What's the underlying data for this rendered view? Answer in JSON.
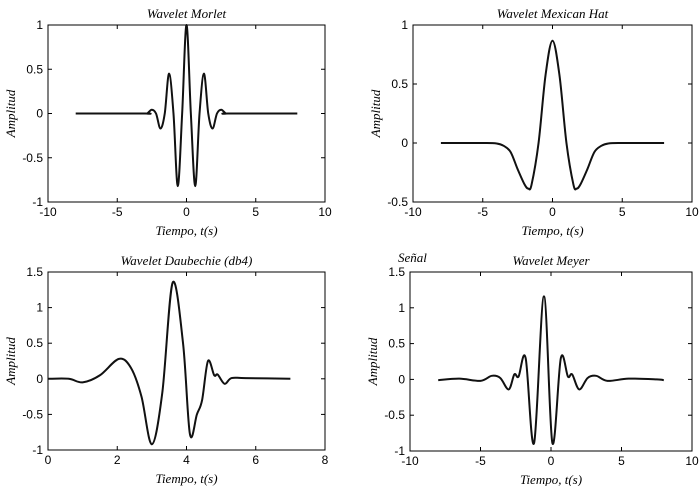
{
  "chart_data": [
    {
      "type": "line",
      "title": "Wavelet Morlet",
      "xlabel": "Tiempo, t(s)",
      "ylabel": "Amplitud",
      "xlim": [
        -10,
        10
      ],
      "ylim": [
        -1,
        1
      ],
      "xticks": [
        -10,
        -5,
        0,
        5,
        10
      ],
      "yticks": [
        -1,
        -0.5,
        0,
        0.5,
        1
      ],
      "xtick_labels": [
        "-10",
        "-5",
        "0",
        "5",
        "10"
      ],
      "ytick_labels": [
        "-1",
        "-0.5",
        "0",
        "0.5",
        "1"
      ],
      "grid": false,
      "points": [
        [
          -8,
          0
        ],
        [
          -3,
          0
        ],
        [
          -2.83,
          0
        ],
        [
          -2.51,
          0.043
        ],
        [
          -2.2,
          0
        ],
        [
          -1.88,
          -0.17
        ],
        [
          -1.57,
          0
        ],
        [
          -1.26,
          0.45
        ],
        [
          -0.94,
          0
        ],
        [
          -0.63,
          -0.82
        ],
        [
          -0.314,
          0
        ],
        [
          0,
          1
        ],
        [
          0.314,
          0
        ],
        [
          0.63,
          -0.82
        ],
        [
          0.94,
          0
        ],
        [
          1.26,
          0.45
        ],
        [
          1.57,
          0
        ],
        [
          1.88,
          -0.17
        ],
        [
          2.2,
          0
        ],
        [
          2.51,
          0.043
        ],
        [
          2.83,
          0
        ],
        [
          3,
          0
        ],
        [
          8,
          0
        ]
      ]
    },
    {
      "type": "line",
      "title": "Wavelet Mexican Hat",
      "xlabel": "Tiempo, t(s)",
      "ylabel": "Amplitud",
      "xlim": [
        -10,
        10
      ],
      "ylim": [
        -0.5,
        1
      ],
      "xticks": [
        -10,
        -5,
        0,
        5,
        10
      ],
      "yticks": [
        -0.5,
        0,
        0.5,
        1
      ],
      "xtick_labels": [
        "-10",
        "-5",
        "0",
        "5",
        "10"
      ],
      "ytick_labels": [
        "-0.5",
        "0",
        "0.5",
        "1"
      ],
      "grid": false,
      "points": [
        [
          -8,
          0
        ],
        [
          -5,
          0
        ],
        [
          -4,
          -0.004
        ],
        [
          -3.5,
          -0.024
        ],
        [
          -3,
          -0.077
        ],
        [
          -2.5,
          -0.222
        ],
        [
          -2,
          -0.352
        ],
        [
          -1.73,
          -0.387
        ],
        [
          -1.5,
          -0.352
        ],
        [
          -1,
          0
        ],
        [
          -0.5,
          0.574
        ],
        [
          0,
          0.867
        ],
        [
          0.5,
          0.574
        ],
        [
          1,
          0
        ],
        [
          1.5,
          -0.352
        ],
        [
          1.73,
          -0.387
        ],
        [
          2,
          -0.352
        ],
        [
          2.5,
          -0.222
        ],
        [
          3,
          -0.077
        ],
        [
          3.5,
          -0.024
        ],
        [
          4,
          -0.004
        ],
        [
          5,
          0
        ],
        [
          8,
          0
        ]
      ]
    },
    {
      "type": "line",
      "title": "Wavelet Daubechie (db4)",
      "xlabel": "Tiempo, t(s)",
      "ylabel": "Amplitud",
      "xlim": [
        0,
        8
      ],
      "ylim": [
        -1,
        1.5
      ],
      "xticks": [
        0,
        2,
        4,
        6,
        8
      ],
      "yticks": [
        -1,
        -0.5,
        0,
        0.5,
        1,
        1.5
      ],
      "xtick_labels": [
        "0",
        "2",
        "4",
        "6",
        "8"
      ],
      "ytick_labels": [
        "-1",
        "-0.5",
        "0",
        "0.5",
        "1",
        "1.5"
      ],
      "grid": false,
      "points": [
        [
          0,
          0
        ],
        [
          0.6,
          0
        ],
        [
          1.0,
          -0.05
        ],
        [
          1.5,
          0.05
        ],
        [
          2.05,
          0.28
        ],
        [
          2.4,
          0.15
        ],
        [
          2.7,
          -0.25
        ],
        [
          3.0,
          -0.92
        ],
        [
          3.3,
          -0.2
        ],
        [
          3.6,
          1.35
        ],
        [
          3.9,
          0.5
        ],
        [
          4.1,
          -0.78
        ],
        [
          4.3,
          -0.5
        ],
        [
          4.45,
          -0.3
        ],
        [
          4.62,
          0.25
        ],
        [
          4.8,
          0.05
        ],
        [
          4.9,
          0.06
        ],
        [
          5.1,
          -0.07
        ],
        [
          5.3,
          0.01
        ],
        [
          5.7,
          0.01
        ],
        [
          7,
          0
        ]
      ]
    },
    {
      "type": "line",
      "title": "Wavelet Meyer",
      "annotation": "Señal",
      "xlabel": "Tiempo, t(s)",
      "ylabel": "Amplitud",
      "xlim": [
        -10,
        10
      ],
      "ylim": [
        -1,
        1.5
      ],
      "xticks": [
        -10,
        -5,
        0,
        5,
        10
      ],
      "yticks": [
        -1,
        -0.5,
        0,
        0.5,
        1,
        1.5
      ],
      "xtick_labels": [
        "-10",
        "-5",
        "0",
        "5",
        "10"
      ],
      "ytick_labels": [
        "-1",
        "-0.5",
        "0",
        "0.5",
        "1",
        "1.5"
      ],
      "grid": false,
      "points": [
        [
          -8,
          -0.01
        ],
        [
          -6.5,
          0.01
        ],
        [
          -5,
          -0.02
        ],
        [
          -4.2,
          0.05
        ],
        [
          -3.6,
          0.02
        ],
        [
          -3.0,
          -0.14
        ],
        [
          -2.6,
          0.07
        ],
        [
          -2.3,
          0.04
        ],
        [
          -1.8,
          0.3
        ],
        [
          -1.2,
          -0.89
        ],
        [
          -0.5,
          1.16
        ],
        [
          0.1,
          -0.89
        ],
        [
          0.7,
          0.3
        ],
        [
          1.2,
          0.04
        ],
        [
          1.5,
          0.07
        ],
        [
          2,
          -0.14
        ],
        [
          2.6,
          0.02
        ],
        [
          3.2,
          0.05
        ],
        [
          4,
          -0.02
        ],
        [
          5.5,
          0.01
        ],
        [
          7.5,
          0
        ],
        [
          8,
          -0.01
        ]
      ]
    }
  ]
}
